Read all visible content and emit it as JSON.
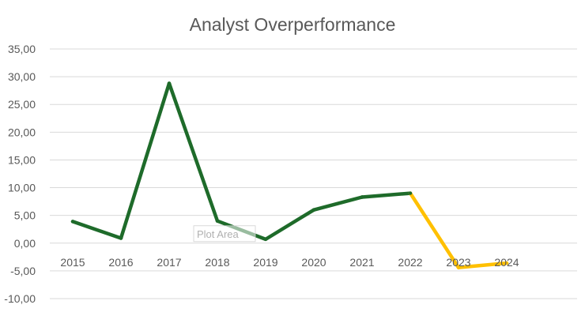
{
  "chart_data": {
    "type": "line",
    "title": "Analyst Overperformance",
    "xlabel": "",
    "ylabel": "",
    "categories": [
      "2015",
      "2016",
      "2017",
      "2018",
      "2019",
      "2020",
      "2021",
      "2022",
      "2023",
      "2024"
    ],
    "series": [
      {
        "values": [
          3.9,
          0.9,
          28.8,
          4.0,
          0.7,
          6.0,
          8.3,
          9.0,
          -4.4,
          -3.6
        ]
      }
    ],
    "highlight_from_category": "2022",
    "ylim": [
      -10,
      35
    ],
    "yticks": [
      "35,00",
      "30,00",
      "25,00",
      "20,00",
      "15,00",
      "10,00",
      "5,00",
      "0,00",
      "-5,00",
      "-10,00"
    ],
    "grid": true,
    "legend": "none",
    "colors": {
      "line_primary": "#1e6b2a",
      "line_highlight": "#ffc000",
      "gridline": "#d9d9d9",
      "text": "#595959"
    },
    "tooltip": {
      "label": "Plot Area",
      "anchor_category": "2018"
    }
  }
}
